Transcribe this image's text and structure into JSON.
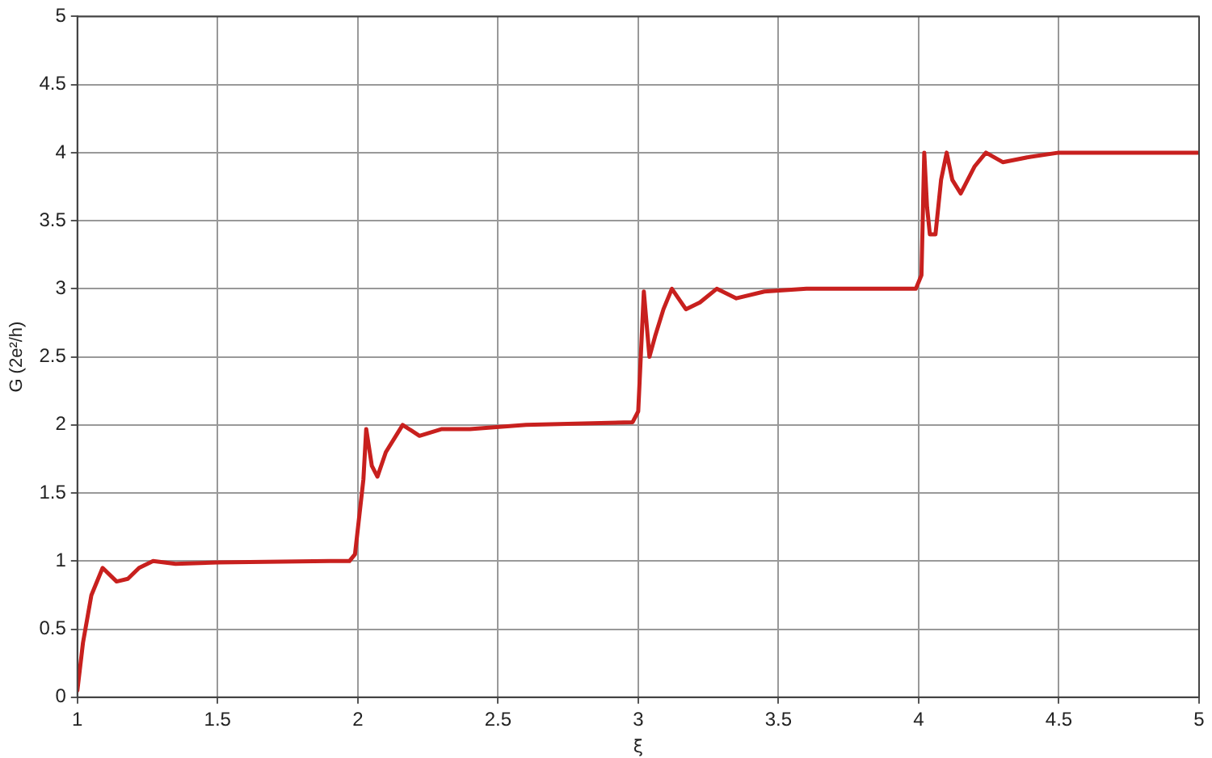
{
  "chart_data": {
    "type": "line",
    "xlabel": "ξ",
    "ylabel": "G (2e²/h)",
    "xlim": [
      1,
      5
    ],
    "xticks": [
      1,
      1.5,
      2,
      2.5,
      3,
      3.5,
      4,
      4.5,
      5
    ],
    "ylim": [
      0,
      5
    ],
    "yticks": [
      0,
      0.5,
      1,
      1.5,
      2,
      2.5,
      3,
      3.5,
      4,
      4.5,
      5
    ],
    "grid": true,
    "legend": false,
    "marker": "none",
    "line_style": "solid",
    "series": [
      {
        "color": "#c8201e",
        "x": [
          1,
          1.02,
          1.05,
          1.09,
          1.14,
          1.18,
          1.22,
          1.27,
          1.35,
          1.5,
          1.9,
          1.97,
          1.99,
          2.02,
          2.03,
          2.05,
          2.07,
          2.1,
          2.16,
          2.22,
          2.3,
          2.4,
          2.6,
          2.98,
          3,
          3.02,
          3.04,
          3.06,
          3.09,
          3.12,
          3.17,
          3.22,
          3.28,
          3.35,
          3.45,
          3.6,
          3.99,
          4.01,
          4.02,
          4.03,
          4.04,
          4.06,
          4.08,
          4.1,
          4.12,
          4.15,
          4.2,
          4.24,
          4.3,
          4.4,
          4.5,
          4.7,
          5
        ],
        "values": [
          0.05,
          0.4,
          0.75,
          0.95,
          0.85,
          0.87,
          0.95,
          1,
          0.98,
          0.99,
          1,
          1,
          1.05,
          1.6,
          1.97,
          1.7,
          1.62,
          1.8,
          2,
          1.92,
          1.97,
          1.97,
          2,
          2.02,
          2.1,
          2.98,
          2.5,
          2.65,
          2.85,
          3,
          2.85,
          2.9,
          3,
          2.93,
          2.98,
          3,
          3,
          3.1,
          4,
          3.6,
          3.4,
          3.4,
          3.8,
          4,
          3.8,
          3.7,
          3.9,
          4,
          3.93,
          3.97,
          4,
          4,
          4
        ]
      }
    ]
  }
}
